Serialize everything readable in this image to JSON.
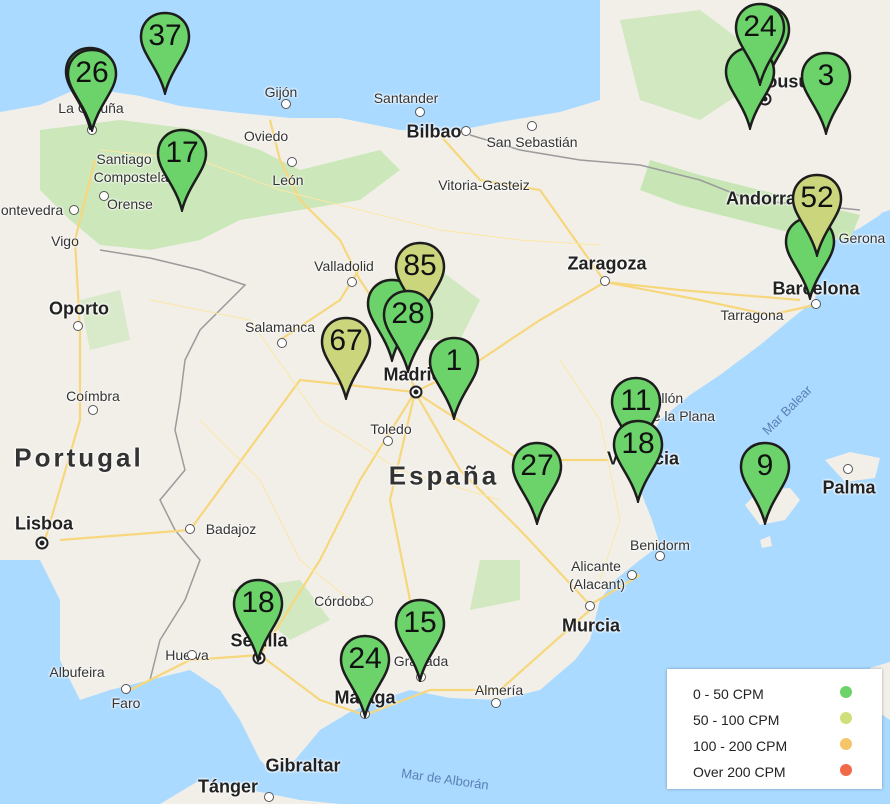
{
  "places": [
    {
      "name": "La Coruña",
      "cls": ""
    },
    {
      "name": "Gijón",
      "cls": ""
    },
    {
      "name": "Santander",
      "cls": ""
    },
    {
      "name": "Bilbao",
      "cls": "big"
    },
    {
      "name": "San Sebastián",
      "cls": ""
    },
    {
      "name": "Oviedo",
      "cls": ""
    },
    {
      "name": "Santiago",
      "cls": ""
    },
    {
      "name": "Compostela",
      "cls": ""
    },
    {
      "name": "León",
      "cls": ""
    },
    {
      "name": "Vitoria-Gasteiz",
      "cls": ""
    },
    {
      "name": "ontevedra",
      "cls": ""
    },
    {
      "name": "Orense",
      "cls": ""
    },
    {
      "name": "Vigo",
      "cls": ""
    },
    {
      "name": "Andorra",
      "cls": "big"
    },
    {
      "name": "Gerona",
      "cls": ""
    },
    {
      "name": "Valladolid",
      "cls": ""
    },
    {
      "name": "Zaragoza",
      "cls": "big"
    },
    {
      "name": "Barcelona",
      "cls": "big"
    },
    {
      "name": "Oporto",
      "cls": "big"
    },
    {
      "name": "Salamanca",
      "cls": ""
    },
    {
      "name": "Tarragona",
      "cls": ""
    },
    {
      "name": "Madrid",
      "cls": "big"
    },
    {
      "name": "Castellón",
      "cls": ""
    },
    {
      "name": "de la Plana",
      "cls": ""
    },
    {
      "name": "Coímbra",
      "cls": ""
    },
    {
      "name": "Toledo",
      "cls": ""
    },
    {
      "name": "Valencia",
      "cls": "big"
    },
    {
      "name": "Portugal",
      "cls": "country"
    },
    {
      "name": "España",
      "cls": "country"
    },
    {
      "name": "Palma",
      "cls": "big"
    },
    {
      "name": "Lisboa",
      "cls": "big"
    },
    {
      "name": "Badajoz",
      "cls": ""
    },
    {
      "name": "Benidorm",
      "cls": ""
    },
    {
      "name": "Alicante",
      "cls": ""
    },
    {
      "name": "(Alacant)",
      "cls": ""
    },
    {
      "name": "Córdoba",
      "cls": ""
    },
    {
      "name": "Murcia",
      "cls": "big"
    },
    {
      "name": "Sevilla",
      "cls": "big"
    },
    {
      "name": "Huelva",
      "cls": ""
    },
    {
      "name": "Granada",
      "cls": ""
    },
    {
      "name": "Albufeira",
      "cls": ""
    },
    {
      "name": "Almería",
      "cls": ""
    },
    {
      "name": "Faro",
      "cls": ""
    },
    {
      "name": "Málaga",
      "cls": "big"
    },
    {
      "name": "Gibraltar",
      "cls": "big"
    },
    {
      "name": "Tánger",
      "cls": "big"
    },
    {
      "name": "Mar de Alborán",
      "cls": "sea"
    },
    {
      "name": "Mar Balear",
      "cls": "sea"
    },
    {
      "name": "Tousu",
      "cls": "big"
    }
  ],
  "markers": [
    {
      "value": "37",
      "level": "0-50"
    },
    {
      "value": "26",
      "level": "0-50"
    },
    {
      "value": "17",
      "level": "0-50"
    },
    {
      "value": "24",
      "level": "0-50"
    },
    {
      "value": "3",
      "level": "0-50"
    },
    {
      "value": "52",
      "level": "50-100"
    },
    {
      "value": "85",
      "level": "50-100"
    },
    {
      "value": "67",
      "level": "50-100"
    },
    {
      "value": "28",
      "level": "0-50"
    },
    {
      "value": "1",
      "level": "0-50"
    },
    {
      "value": "11",
      "level": "0-50"
    },
    {
      "value": "18",
      "level": "0-50"
    },
    {
      "value": "27",
      "level": "0-50"
    },
    {
      "value": "9",
      "level": "0-50"
    },
    {
      "value": "18",
      "level": "0-50"
    },
    {
      "value": "15",
      "level": "0-50"
    },
    {
      "value": "24",
      "level": "0-50"
    }
  ],
  "legend": {
    "items": [
      {
        "label": "0 - 50 CPM",
        "color": "#6cd36a"
      },
      {
        "label": "50 - 100 CPM",
        "color": "#cfe07a"
      },
      {
        "label": "100 - 200 CPM",
        "color": "#f4c56a"
      },
      {
        "label": "Over 200 CPM",
        "color": "#f06a4a"
      }
    ]
  },
  "colors": {
    "sea": "#aadaff",
    "land": "#f2efe9",
    "forest": "#c8e6b5",
    "marker_low": "#6cd36a",
    "marker_mid": "#cbd67c"
  }
}
